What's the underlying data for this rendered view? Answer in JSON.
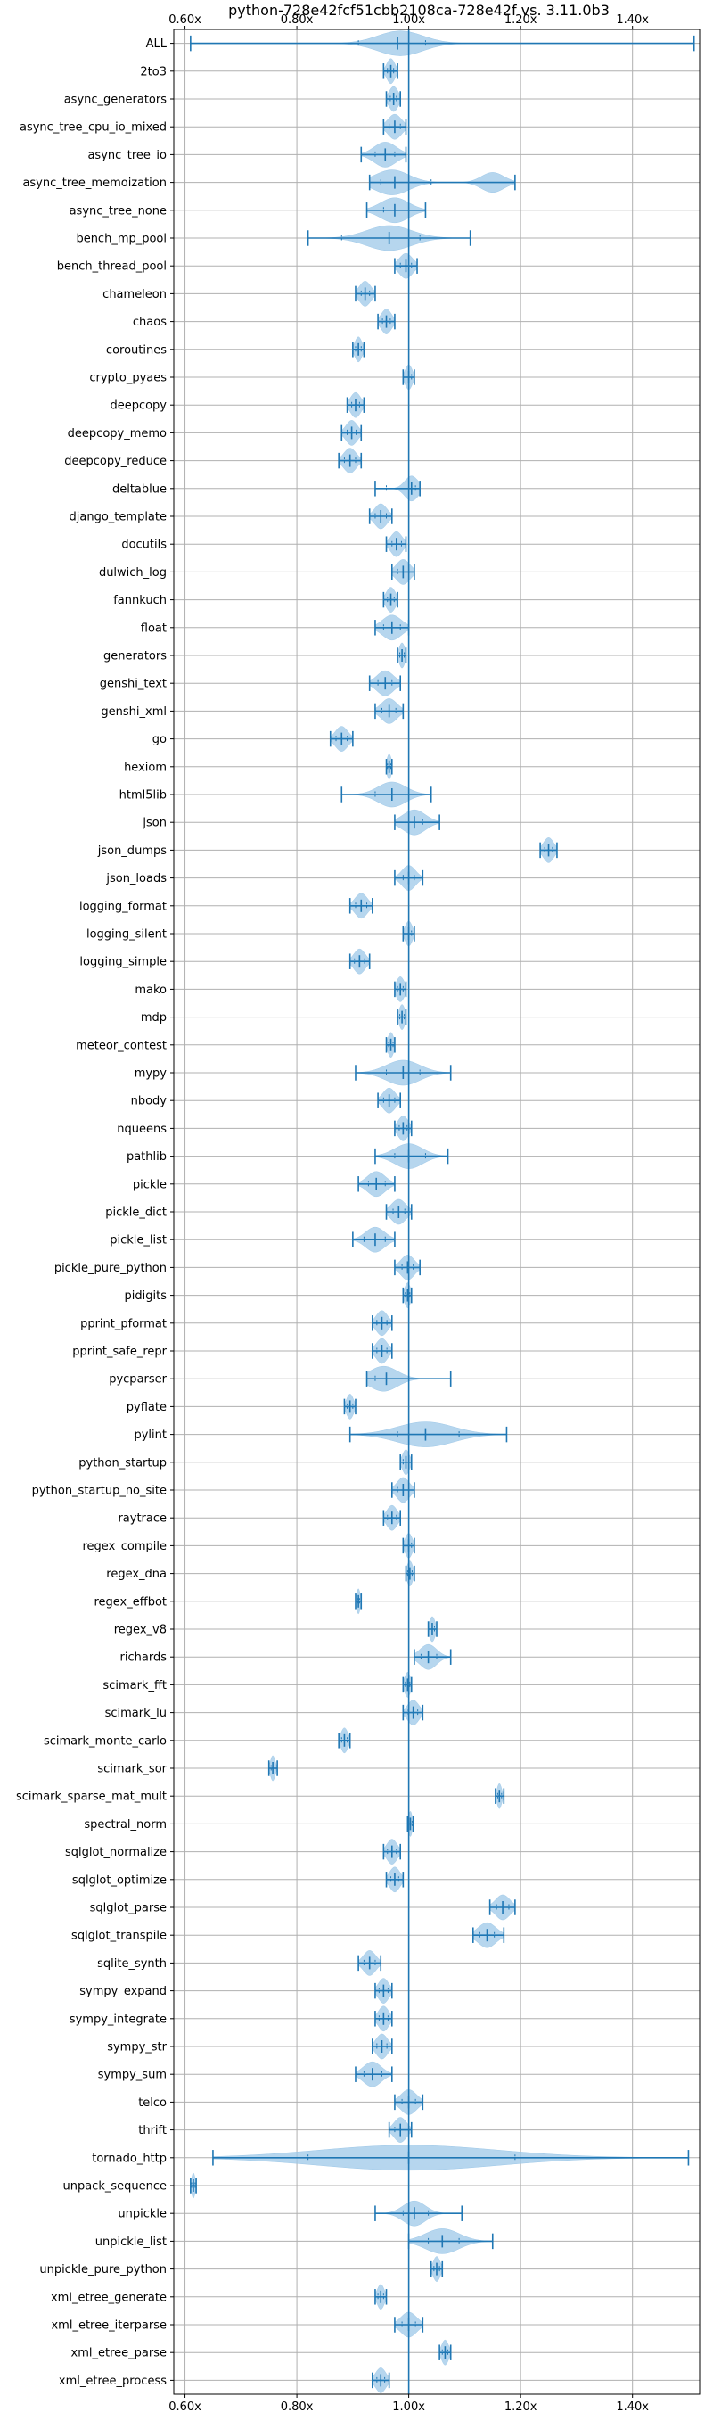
{
  "chart_data": {
    "type": "violin",
    "title": "python-728e42fcf51cbb2108ca-728e42f vs. 3.11.0b3",
    "xlabel": "",
    "ylabel": "",
    "xlim": [
      0.58,
      1.52
    ],
    "x_ticks": [
      0.6,
      0.8,
      1.0,
      1.2,
      1.4
    ],
    "x_tick_labels": [
      "0.60x",
      "0.80x",
      "1.00x",
      "1.20x",
      "1.40x"
    ],
    "reference_line": 1.0,
    "grid": true,
    "colors": {
      "violin_fill": "#9ec8e8",
      "violin_edge": "#1f77b4",
      "grid": "#b0b0b0"
    },
    "series": [
      {
        "name": "ALL",
        "min": 0.61,
        "max": 1.51,
        "median": 0.98,
        "q1": 0.91,
        "q3": 1.03,
        "mode": 0.985,
        "spread": 0.04
      },
      {
        "name": "2to3",
        "min": 0.955,
        "max": 0.98,
        "median": 0.968,
        "q1": 0.962,
        "q3": 0.973,
        "mode": 0.968,
        "spread": 0.007
      },
      {
        "name": "async_generators",
        "min": 0.96,
        "max": 0.985,
        "median": 0.973,
        "q1": 0.967,
        "q3": 0.978,
        "mode": 0.973,
        "spread": 0.008
      },
      {
        "name": "async_tree_cpu_io_mixed",
        "min": 0.955,
        "max": 0.995,
        "median": 0.975,
        "q1": 0.965,
        "q3": 0.985,
        "mode": 0.975,
        "spread": 0.012
      },
      {
        "name": "async_tree_io",
        "min": 0.915,
        "max": 0.995,
        "median": 0.958,
        "q1": 0.94,
        "q3": 0.975,
        "mode": 0.958,
        "spread": 0.02
      },
      {
        "name": "async_tree_memoization",
        "min": 0.93,
        "max": 1.19,
        "median": 0.975,
        "q1": 0.95,
        "q3": 1.04,
        "mode": 0.97,
        "spread": 0.03,
        "mode2": 1.15,
        "spread2": 0.02,
        "w2": 0.8
      },
      {
        "name": "async_tree_none",
        "min": 0.925,
        "max": 1.03,
        "median": 0.975,
        "q1": 0.955,
        "q3": 1.0,
        "mode": 0.975,
        "spread": 0.025
      },
      {
        "name": "bench_mp_pool",
        "min": 0.82,
        "max": 1.11,
        "median": 0.965,
        "q1": 0.88,
        "q3": 1.02,
        "mode": 0.965,
        "spread": 0.04
      },
      {
        "name": "bench_thread_pool",
        "min": 0.975,
        "max": 1.015,
        "median": 0.995,
        "q1": 0.985,
        "q3": 1.005,
        "mode": 0.995,
        "spread": 0.012
      },
      {
        "name": "chameleon",
        "min": 0.905,
        "max": 0.94,
        "median": 0.922,
        "q1": 0.915,
        "q3": 0.93,
        "mode": 0.922,
        "spread": 0.01
      },
      {
        "name": "chaos",
        "min": 0.945,
        "max": 0.975,
        "median": 0.96,
        "q1": 0.953,
        "q3": 0.967,
        "mode": 0.96,
        "spread": 0.009
      },
      {
        "name": "coroutines",
        "min": 0.9,
        "max": 0.92,
        "median": 0.91,
        "q1": 0.905,
        "q3": 0.915,
        "mode": 0.91,
        "spread": 0.006
      },
      {
        "name": "crypto_pyaes",
        "min": 0.99,
        "max": 1.01,
        "median": 1.0,
        "q1": 0.995,
        "q3": 1.005,
        "mode": 1.0,
        "spread": 0.006
      },
      {
        "name": "deepcopy",
        "min": 0.89,
        "max": 0.92,
        "median": 0.905,
        "q1": 0.898,
        "q3": 0.912,
        "mode": 0.905,
        "spread": 0.009
      },
      {
        "name": "deepcopy_memo",
        "min": 0.88,
        "max": 0.915,
        "median": 0.898,
        "q1": 0.89,
        "q3": 0.906,
        "mode": 0.898,
        "spread": 0.01
      },
      {
        "name": "deepcopy_reduce",
        "min": 0.875,
        "max": 0.915,
        "median": 0.895,
        "q1": 0.885,
        "q3": 0.905,
        "mode": 0.895,
        "spread": 0.011
      },
      {
        "name": "deltablue",
        "min": 0.94,
        "max": 1.02,
        "median": 1.005,
        "q1": 0.96,
        "q3": 1.012,
        "mode": 1.005,
        "spread": 0.012
      },
      {
        "name": "django_template",
        "min": 0.93,
        "max": 0.97,
        "median": 0.95,
        "q1": 0.94,
        "q3": 0.96,
        "mode": 0.95,
        "spread": 0.011
      },
      {
        "name": "docutils",
        "min": 0.96,
        "max": 0.995,
        "median": 0.978,
        "q1": 0.97,
        "q3": 0.987,
        "mode": 0.978,
        "spread": 0.01
      },
      {
        "name": "dulwich_log",
        "min": 0.97,
        "max": 1.01,
        "median": 0.99,
        "q1": 0.98,
        "q3": 1.0,
        "mode": 0.99,
        "spread": 0.012
      },
      {
        "name": "fannkuch",
        "min": 0.955,
        "max": 0.98,
        "median": 0.968,
        "q1": 0.962,
        "q3": 0.974,
        "mode": 0.968,
        "spread": 0.008
      },
      {
        "name": "float",
        "min": 0.94,
        "max": 1.0,
        "median": 0.97,
        "q1": 0.955,
        "q3": 0.985,
        "mode": 0.97,
        "spread": 0.017
      },
      {
        "name": "generators",
        "min": 0.98,
        "max": 0.995,
        "median": 0.988,
        "q1": 0.984,
        "q3": 0.992,
        "mode": 0.988,
        "spread": 0.005
      },
      {
        "name": "genshi_text",
        "min": 0.93,
        "max": 0.985,
        "median": 0.958,
        "q1": 0.945,
        "q3": 0.97,
        "mode": 0.958,
        "spread": 0.015
      },
      {
        "name": "genshi_xml",
        "min": 0.94,
        "max": 0.99,
        "median": 0.965,
        "q1": 0.952,
        "q3": 0.977,
        "mode": 0.965,
        "spread": 0.014
      },
      {
        "name": "go",
        "min": 0.86,
        "max": 0.9,
        "median": 0.88,
        "q1": 0.87,
        "q3": 0.89,
        "mode": 0.88,
        "spread": 0.011
      },
      {
        "name": "hexiom",
        "min": 0.96,
        "max": 0.97,
        "median": 0.965,
        "q1": 0.962,
        "q3": 0.968,
        "mode": 0.965,
        "spread": 0.004
      },
      {
        "name": "html5lib",
        "min": 0.88,
        "max": 1.04,
        "median": 0.97,
        "q1": 0.94,
        "q3": 0.995,
        "mode": 0.97,
        "spread": 0.025
      },
      {
        "name": "json",
        "min": 0.975,
        "max": 1.055,
        "median": 1.01,
        "q1": 0.995,
        "q3": 1.025,
        "mode": 1.01,
        "spread": 0.02
      },
      {
        "name": "json_dumps",
        "min": 1.235,
        "max": 1.265,
        "median": 1.25,
        "q1": 1.243,
        "q3": 1.257,
        "mode": 1.25,
        "spread": 0.009
      },
      {
        "name": "json_loads",
        "min": 0.975,
        "max": 1.025,
        "median": 1.0,
        "q1": 0.99,
        "q3": 1.01,
        "mode": 1.0,
        "spread": 0.012
      },
      {
        "name": "logging_format",
        "min": 0.895,
        "max": 0.935,
        "median": 0.915,
        "q1": 0.905,
        "q3": 0.925,
        "mode": 0.915,
        "spread": 0.011
      },
      {
        "name": "logging_silent",
        "min": 0.99,
        "max": 1.01,
        "median": 1.0,
        "q1": 0.995,
        "q3": 1.005,
        "mode": 1.0,
        "spread": 0.006
      },
      {
        "name": "logging_simple",
        "min": 0.895,
        "max": 0.93,
        "median": 0.912,
        "q1": 0.903,
        "q3": 0.921,
        "mode": 0.912,
        "spread": 0.01
      },
      {
        "name": "mako",
        "min": 0.975,
        "max": 0.995,
        "median": 0.985,
        "q1": 0.98,
        "q3": 0.99,
        "mode": 0.985,
        "spread": 0.007
      },
      {
        "name": "mdp",
        "min": 0.98,
        "max": 0.995,
        "median": 0.988,
        "q1": 0.984,
        "q3": 0.992,
        "mode": 0.988,
        "spread": 0.005
      },
      {
        "name": "meteor_contest",
        "min": 0.96,
        "max": 0.975,
        "median": 0.968,
        "q1": 0.964,
        "q3": 0.972,
        "mode": 0.968,
        "spread": 0.005
      },
      {
        "name": "mypy",
        "min": 0.905,
        "max": 1.075,
        "median": 0.99,
        "q1": 0.96,
        "q3": 1.02,
        "mode": 0.99,
        "spread": 0.03
      },
      {
        "name": "nbody",
        "min": 0.945,
        "max": 0.985,
        "median": 0.965,
        "q1": 0.955,
        "q3": 0.975,
        "mode": 0.965,
        "spread": 0.011
      },
      {
        "name": "nqueens",
        "min": 0.975,
        "max": 1.005,
        "median": 0.99,
        "q1": 0.983,
        "q3": 0.997,
        "mode": 0.99,
        "spread": 0.009
      },
      {
        "name": "pathlib",
        "min": 0.94,
        "max": 1.07,
        "median": 1.0,
        "q1": 0.975,
        "q3": 1.03,
        "mode": 1.0,
        "spread": 0.025
      },
      {
        "name": "pickle",
        "min": 0.91,
        "max": 0.975,
        "median": 0.942,
        "q1": 0.928,
        "q3": 0.958,
        "mode": 0.942,
        "spread": 0.016
      },
      {
        "name": "pickle_dict",
        "min": 0.96,
        "max": 1.005,
        "median": 0.982,
        "q1": 0.972,
        "q3": 0.993,
        "mode": 0.982,
        "spread": 0.013
      },
      {
        "name": "pickle_list",
        "min": 0.9,
        "max": 0.975,
        "median": 0.94,
        "q1": 0.92,
        "q3": 0.958,
        "mode": 0.94,
        "spread": 0.017
      },
      {
        "name": "pickle_pure_python",
        "min": 0.975,
        "max": 1.02,
        "median": 0.998,
        "q1": 0.988,
        "q3": 1.008,
        "mode": 0.998,
        "spread": 0.012
      },
      {
        "name": "pidigits",
        "min": 0.99,
        "max": 1.005,
        "median": 0.998,
        "q1": 0.994,
        "q3": 1.002,
        "mode": 0.998,
        "spread": 0.005
      },
      {
        "name": "pprint_pformat",
        "min": 0.935,
        "max": 0.97,
        "median": 0.952,
        "q1": 0.943,
        "q3": 0.961,
        "mode": 0.952,
        "spread": 0.01
      },
      {
        "name": "pprint_safe_repr",
        "min": 0.935,
        "max": 0.97,
        "median": 0.952,
        "q1": 0.943,
        "q3": 0.961,
        "mode": 0.952,
        "spread": 0.01
      },
      {
        "name": "pycparser",
        "min": 0.925,
        "max": 1.075,
        "median": 0.96,
        "q1": 0.94,
        "q3": 1.0,
        "mode": 0.955,
        "spread": 0.025
      },
      {
        "name": "pyflate",
        "min": 0.885,
        "max": 0.905,
        "median": 0.895,
        "q1": 0.89,
        "q3": 0.9,
        "mode": 0.895,
        "spread": 0.006
      },
      {
        "name": "pylint",
        "min": 0.895,
        "max": 1.175,
        "median": 1.03,
        "q1": 0.98,
        "q3": 1.09,
        "mode": 1.03,
        "spread": 0.05
      },
      {
        "name": "python_startup",
        "min": 0.985,
        "max": 1.005,
        "median": 0.995,
        "q1": 0.99,
        "q3": 1.0,
        "mode": 0.995,
        "spread": 0.006
      },
      {
        "name": "python_startup_no_site",
        "min": 0.97,
        "max": 1.01,
        "median": 0.99,
        "q1": 0.98,
        "q3": 1.0,
        "mode": 0.99,
        "spread": 0.011
      },
      {
        "name": "raytrace",
        "min": 0.955,
        "max": 0.985,
        "median": 0.97,
        "q1": 0.962,
        "q3": 0.978,
        "mode": 0.97,
        "spread": 0.009
      },
      {
        "name": "regex_compile",
        "min": 0.99,
        "max": 1.01,
        "median": 1.0,
        "q1": 0.995,
        "q3": 1.005,
        "mode": 1.0,
        "spread": 0.006
      },
      {
        "name": "regex_dna",
        "min": 0.995,
        "max": 1.01,
        "median": 1.002,
        "q1": 0.998,
        "q3": 1.006,
        "mode": 1.002,
        "spread": 0.005
      },
      {
        "name": "regex_effbot",
        "min": 0.905,
        "max": 0.915,
        "median": 0.91,
        "q1": 0.908,
        "q3": 0.912,
        "mode": 0.91,
        "spread": 0.003
      },
      {
        "name": "regex_v8",
        "min": 1.035,
        "max": 1.05,
        "median": 1.042,
        "q1": 1.038,
        "q3": 1.046,
        "mode": 1.042,
        "spread": 0.005
      },
      {
        "name": "richards",
        "min": 1.01,
        "max": 1.075,
        "median": 1.035,
        "q1": 1.022,
        "q3": 1.05,
        "mode": 1.035,
        "spread": 0.015
      },
      {
        "name": "scimark_fft",
        "min": 0.99,
        "max": 1.005,
        "median": 0.998,
        "q1": 0.994,
        "q3": 1.002,
        "mode": 0.998,
        "spread": 0.005
      },
      {
        "name": "scimark_lu",
        "min": 0.99,
        "max": 1.025,
        "median": 1.008,
        "q1": 0.999,
        "q3": 1.016,
        "mode": 1.008,
        "spread": 0.01
      },
      {
        "name": "scimark_monte_carlo",
        "min": 0.875,
        "max": 0.895,
        "median": 0.885,
        "q1": 0.88,
        "q3": 0.89,
        "mode": 0.885,
        "spread": 0.006
      },
      {
        "name": "scimark_sor",
        "min": 0.75,
        "max": 0.765,
        "median": 0.757,
        "q1": 0.754,
        "q3": 0.761,
        "mode": 0.757,
        "spread": 0.004
      },
      {
        "name": "scimark_sparse_mat_mult",
        "min": 1.155,
        "max": 1.17,
        "median": 1.162,
        "q1": 1.159,
        "q3": 1.166,
        "mode": 1.162,
        "spread": 0.004
      },
      {
        "name": "spectral_norm",
        "min": 0.998,
        "max": 1.008,
        "median": 1.003,
        "q1": 1.0,
        "q3": 1.006,
        "mode": 1.003,
        "spread": 0.003
      },
      {
        "name": "sqlglot_normalize",
        "min": 0.955,
        "max": 0.985,
        "median": 0.97,
        "q1": 0.962,
        "q3": 0.978,
        "mode": 0.97,
        "spread": 0.009
      },
      {
        "name": "sqlglot_optimize",
        "min": 0.96,
        "max": 0.99,
        "median": 0.975,
        "q1": 0.968,
        "q3": 0.982,
        "mode": 0.975,
        "spread": 0.009
      },
      {
        "name": "sqlglot_parse",
        "min": 1.145,
        "max": 1.19,
        "median": 1.168,
        "q1": 1.157,
        "q3": 1.179,
        "mode": 1.168,
        "spread": 0.013
      },
      {
        "name": "sqlglot_transpile",
        "min": 1.115,
        "max": 1.17,
        "median": 1.14,
        "q1": 1.127,
        "q3": 1.153,
        "mode": 1.14,
        "spread": 0.016
      },
      {
        "name": "sqlite_synth",
        "min": 0.91,
        "max": 0.95,
        "median": 0.93,
        "q1": 0.92,
        "q3": 0.94,
        "mode": 0.93,
        "spread": 0.011
      },
      {
        "name": "sympy_expand",
        "min": 0.94,
        "max": 0.97,
        "median": 0.955,
        "q1": 0.947,
        "q3": 0.963,
        "mode": 0.955,
        "spread": 0.009
      },
      {
        "name": "sympy_integrate",
        "min": 0.94,
        "max": 0.97,
        "median": 0.955,
        "q1": 0.947,
        "q3": 0.963,
        "mode": 0.955,
        "spread": 0.009
      },
      {
        "name": "sympy_str",
        "min": 0.935,
        "max": 0.97,
        "median": 0.952,
        "q1": 0.943,
        "q3": 0.961,
        "mode": 0.952,
        "spread": 0.01
      },
      {
        "name": "sympy_sum",
        "min": 0.905,
        "max": 0.97,
        "median": 0.935,
        "q1": 0.92,
        "q3": 0.952,
        "mode": 0.935,
        "spread": 0.016
      },
      {
        "name": "telco",
        "min": 0.975,
        "max": 1.025,
        "median": 1.0,
        "q1": 0.988,
        "q3": 1.012,
        "mode": 1.0,
        "spread": 0.014
      },
      {
        "name": "thrift",
        "min": 0.965,
        "max": 1.005,
        "median": 0.985,
        "q1": 0.975,
        "q3": 0.995,
        "mode": 0.985,
        "spread": 0.011
      },
      {
        "name": "tornado_http",
        "min": 0.65,
        "max": 1.5,
        "median": 1.0,
        "q1": 0.82,
        "q3": 1.19,
        "mode": 1.0,
        "spread": 0.16
      },
      {
        "name": "unpack_sequence",
        "min": 0.61,
        "max": 0.62,
        "median": 0.615,
        "q1": 0.612,
        "q3": 0.618,
        "mode": 0.615,
        "spread": 0.003
      },
      {
        "name": "unpickle",
        "min": 0.94,
        "max": 1.095,
        "median": 1.01,
        "q1": 0.99,
        "q3": 1.035,
        "mode": 1.01,
        "spread": 0.02
      },
      {
        "name": "unpickle_list",
        "min": 1.0,
        "max": 1.15,
        "median": 1.06,
        "q1": 1.035,
        "q3": 1.09,
        "mode": 1.06,
        "spread": 0.03
      },
      {
        "name": "unpickle_pure_python",
        "min": 1.04,
        "max": 1.06,
        "median": 1.05,
        "q1": 1.045,
        "q3": 1.055,
        "mode": 1.05,
        "spread": 0.006
      },
      {
        "name": "xml_etree_generate",
        "min": 0.94,
        "max": 0.96,
        "median": 0.95,
        "q1": 0.945,
        "q3": 0.955,
        "mode": 0.95,
        "spread": 0.006
      },
      {
        "name": "xml_etree_iterparse",
        "min": 0.975,
        "max": 1.025,
        "median": 1.0,
        "q1": 0.988,
        "q3": 1.012,
        "mode": 1.0,
        "spread": 0.014
      },
      {
        "name": "xml_etree_parse",
        "min": 1.055,
        "max": 1.075,
        "median": 1.065,
        "q1": 1.06,
        "q3": 1.07,
        "mode": 1.065,
        "spread": 0.006
      },
      {
        "name": "xml_etree_process",
        "min": 0.935,
        "max": 0.965,
        "median": 0.95,
        "q1": 0.943,
        "q3": 0.957,
        "mode": 0.95,
        "spread": 0.009
      }
    ]
  }
}
